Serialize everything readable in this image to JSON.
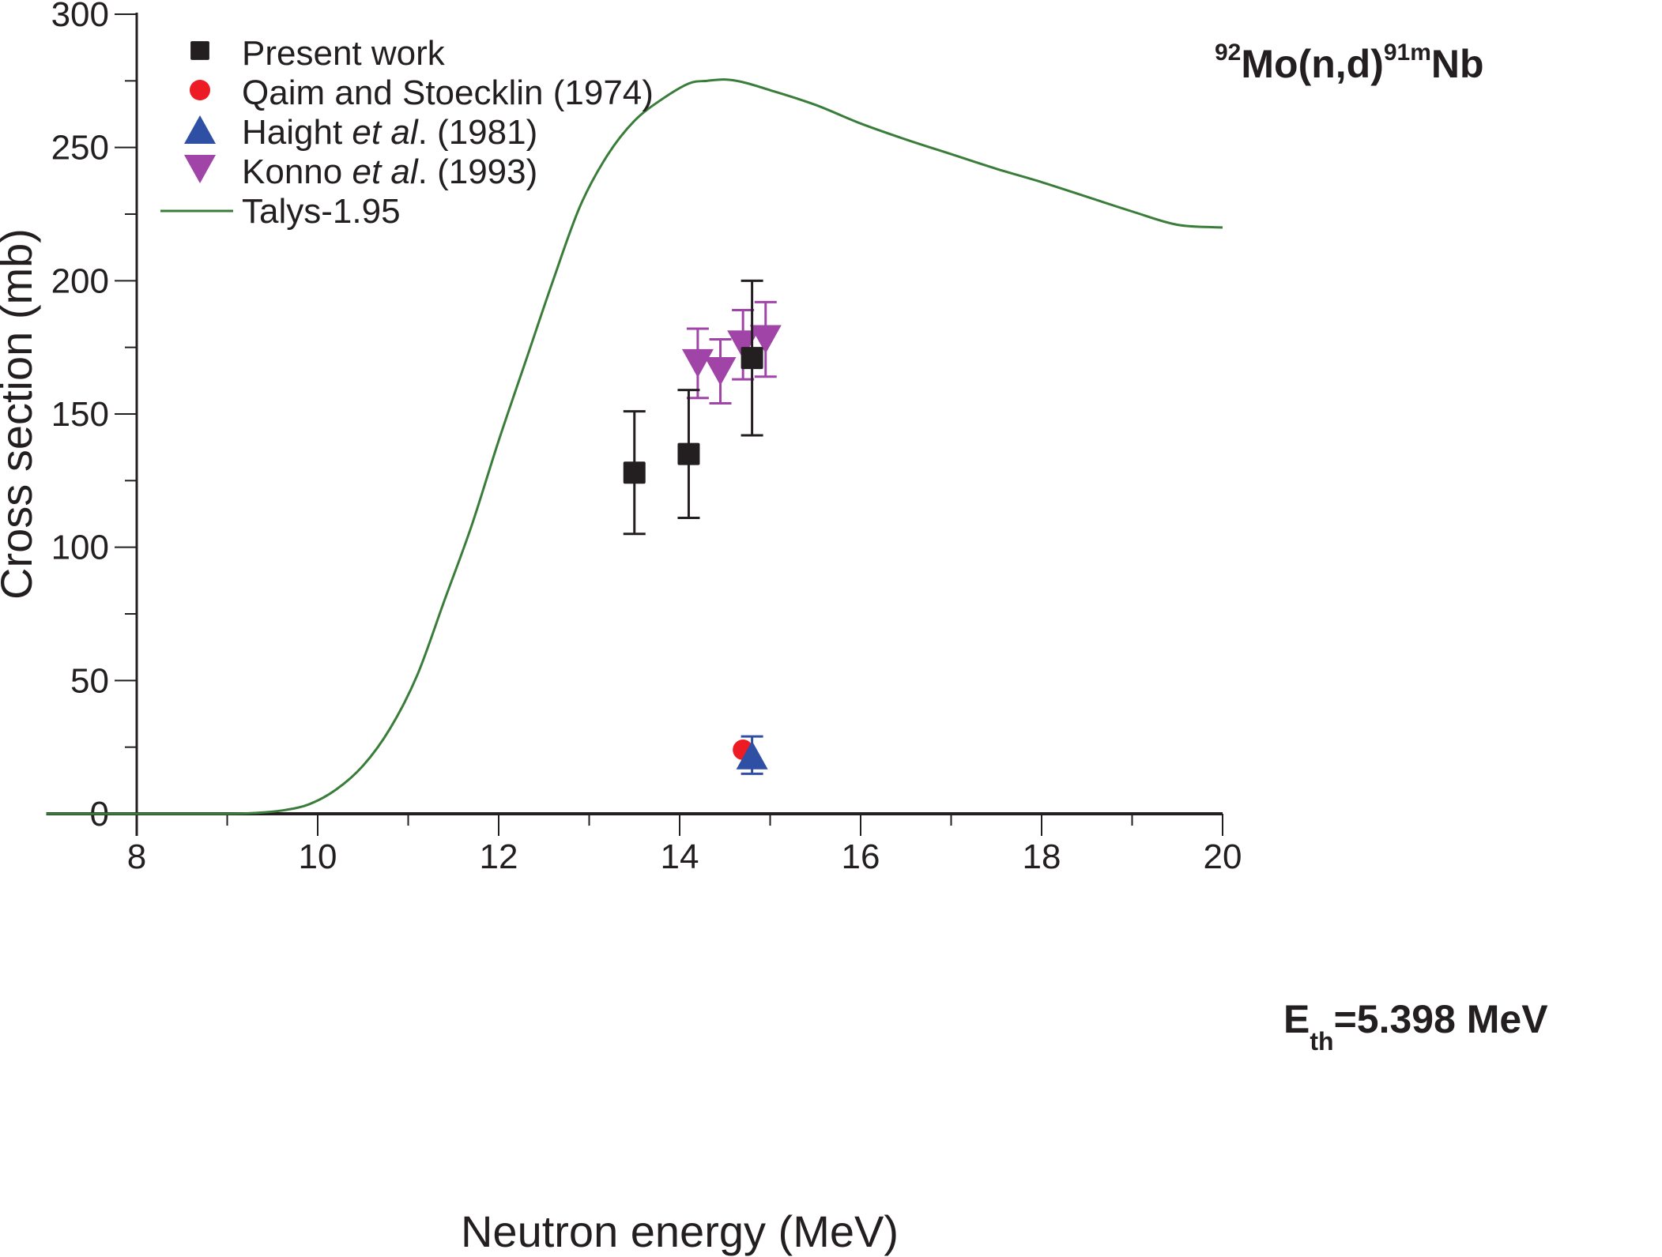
{
  "chart_data": {
    "type": "scatter",
    "title": "",
    "xlabel": "Neutron energy (MeV)",
    "ylabel": "Cross section (mb)",
    "xlim": [
      7,
      20
    ],
    "ylim": [
      0,
      300
    ],
    "xticks": [
      8,
      10,
      12,
      14,
      16,
      18,
      20
    ],
    "xticks_minor": [
      9,
      11,
      13,
      15,
      17,
      19
    ],
    "yticks": [
      0,
      50,
      100,
      150,
      200,
      250,
      300
    ],
    "yticks_minor": [
      25,
      75,
      125,
      175,
      225,
      275
    ],
    "grid": false,
    "legend_position": "top-left",
    "annotations": {
      "reaction": {
        "pre_sup": "92",
        "main1": "Mo(n,d)",
        "mid_sup": "91m",
        "main2": "Nb"
      },
      "threshold": {
        "main": "E",
        "sub": "th",
        "rest": "=5.398 MeV"
      }
    },
    "series": [
      {
        "name": "Present work",
        "legend_parts": [
          {
            "text": "Present work",
            "italic": false
          }
        ],
        "marker": "square",
        "color": "#231f20",
        "points": [
          {
            "x": 13.5,
            "y": 128,
            "err": 23
          },
          {
            "x": 14.1,
            "y": 135,
            "err": 24
          },
          {
            "x": 14.8,
            "y": 171,
            "err": 29
          }
        ]
      },
      {
        "name": "Qaim and Stoecklin (1974)",
        "legend_parts": [
          {
            "text": "Qaim and Stoecklin (1974)",
            "italic": false
          }
        ],
        "marker": "circle",
        "color": "#ed1c24",
        "points": [
          {
            "x": 14.7,
            "y": 24,
            "err": 0
          }
        ]
      },
      {
        "name": "Haight et al. (1981)",
        "legend_parts": [
          {
            "text": "Haight ",
            "italic": false
          },
          {
            "text": "et al",
            "italic": true
          },
          {
            "text": ". (1981)",
            "italic": false
          }
        ],
        "marker": "triangle-up",
        "color": "#2e4fa3",
        "points": [
          {
            "x": 14.8,
            "y": 22,
            "err": 7
          }
        ]
      },
      {
        "name": "Konno et al. (1993)",
        "legend_parts": [
          {
            "text": "Konno ",
            "italic": false
          },
          {
            "text": "et al",
            "italic": true
          },
          {
            "text": ". (1993)",
            "italic": false
          }
        ],
        "marker": "triangle-down",
        "color": "#a044a8",
        "points": [
          {
            "x": 14.2,
            "y": 169,
            "err": 13
          },
          {
            "x": 14.45,
            "y": 166,
            "err": 12
          },
          {
            "x": 14.7,
            "y": 176,
            "err": 13
          },
          {
            "x": 14.95,
            "y": 178,
            "err": 14
          }
        ]
      },
      {
        "name": "Talys-1.95",
        "legend_parts": [
          {
            "text": "Talys-1.95",
            "italic": false
          }
        ],
        "marker": "line",
        "color": "#3a7d3a",
        "x": [
          7.0,
          8.0,
          9.0,
          9.3,
          9.6,
          9.9,
          10.2,
          10.5,
          10.8,
          11.1,
          11.4,
          11.7,
          12.0,
          12.3,
          12.6,
          12.9,
          13.2,
          13.5,
          13.8,
          14.1,
          14.3,
          14.5,
          14.7,
          15.0,
          15.5,
          16.0,
          16.5,
          17.0,
          17.5,
          18.0,
          18.5,
          19.0,
          19.5,
          20.0
        ],
        "y": [
          0,
          0,
          0,
          0.3,
          1.2,
          3.5,
          9,
          18,
          32,
          52,
          80,
          108,
          140,
          170,
          200,
          228,
          247,
          260,
          268,
          274,
          275,
          275.5,
          274.5,
          271.5,
          266,
          259,
          253,
          247.5,
          242,
          237,
          231.5,
          226,
          221,
          220
        ]
      }
    ]
  }
}
